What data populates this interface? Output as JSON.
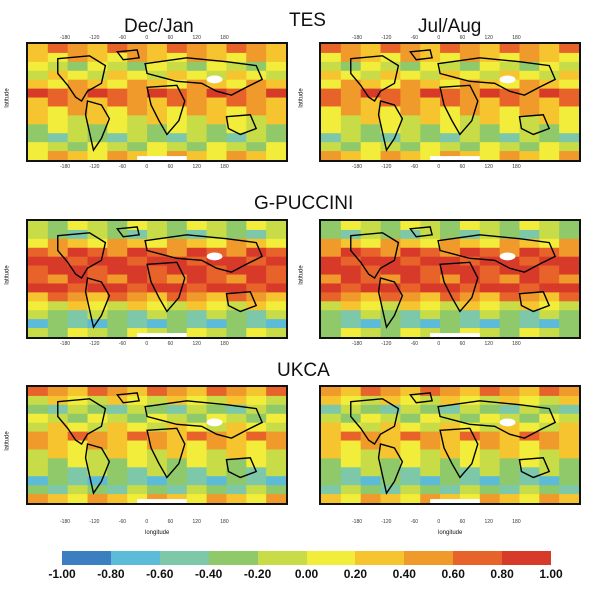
{
  "titles": {
    "dec_jan": "Dec/Jan",
    "jul_aug": "Jul/Aug",
    "tes": "TES",
    "gpuccini": "G-PUCCINI",
    "ukca": "UKCA"
  },
  "axis": {
    "latitude": "latitude",
    "longitude": "longitude",
    "lon_ticks": "-180 -120 -60 0 60 120 180"
  },
  "colorbar": {
    "colors": [
      "#3b7fc0",
      "#5cbbd8",
      "#7cc8a8",
      "#8fc96a",
      "#c8dc48",
      "#f2ec3a",
      "#f5c42e",
      "#ef9a2a",
      "#e8632a",
      "#d83a2a"
    ],
    "labels": [
      "-1.00",
      "-0.80",
      "-0.60",
      "-0.40",
      "-0.20",
      "0.00",
      "0.20",
      "0.40",
      "0.60",
      "0.80",
      "1.00"
    ]
  }
}
